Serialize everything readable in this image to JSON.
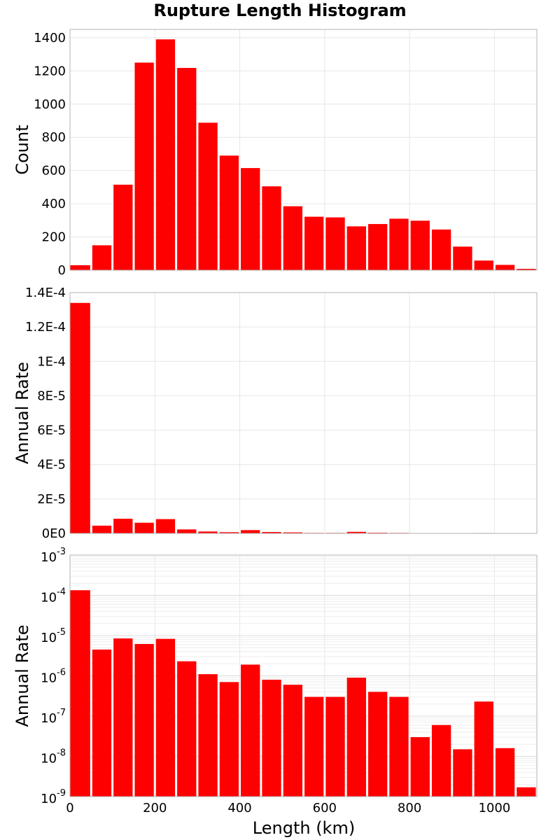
{
  "chart_data": {
    "title": "Rupture Length Histogram",
    "type": "bar",
    "x": {
      "label": "Length (km)",
      "range": [
        0,
        1100
      ],
      "ticks": [
        "0",
        "200",
        "400",
        "600",
        "800",
        "1000"
      ],
      "tick_values": [
        0,
        200,
        400,
        600,
        800,
        1000
      ]
    },
    "bin_width": 50,
    "bin_centers": [
      25,
      75,
      125,
      175,
      225,
      275,
      325,
      375,
      425,
      475,
      525,
      575,
      625,
      675,
      725,
      775,
      825,
      875,
      925,
      975,
      1025,
      1075
    ],
    "bar_color": "#ff0000",
    "grid": true,
    "panels": [
      {
        "ylabel": "Count",
        "scale": "linear",
        "ylim": [
          0,
          1450
        ],
        "ticks": [
          "0",
          "200",
          "400",
          "600",
          "800",
          "1000",
          "1200",
          "1400"
        ],
        "tick_values": [
          0,
          200,
          400,
          600,
          800,
          1000,
          1200,
          1400
        ],
        "values": [
          30,
          150,
          515,
          1250,
          1390,
          1218,
          888,
          690,
          615,
          505,
          385,
          322,
          318,
          264,
          278,
          310,
          298,
          245,
          142,
          58,
          32,
          8
        ]
      },
      {
        "ylabel": "Annual Rate",
        "scale": "linear",
        "ylim": [
          0,
          0.00014
        ],
        "ticks": [
          "0E0",
          "2E-5",
          "4E-5",
          "6E-5",
          "8E-5",
          "1E-4",
          "1.2E-4",
          "1.4E-4"
        ],
        "tick_values": [
          0,
          2e-05,
          4e-05,
          6e-05,
          8e-05,
          0.0001,
          0.00012,
          0.00014
        ],
        "values": [
          0.000134,
          4.5e-06,
          8.5e-06,
          6.2e-06,
          8.3e-06,
          2.3e-06,
          1.1e-06,
          7e-07,
          1.9e-06,
          8e-07,
          6e-07,
          3e-07,
          3e-07,
          9e-07,
          4e-07,
          3e-07,
          3e-08,
          6e-08,
          1.5e-08,
          2.3e-07,
          1.6e-08,
          1.7e-09
        ]
      },
      {
        "ylabel": "Annual Rate",
        "scale": "log",
        "ylim": [
          1e-09,
          0.001
        ],
        "ticks": [
          {
            "base": "10",
            "exp": "-9"
          },
          {
            "base": "10",
            "exp": "-8"
          },
          {
            "base": "10",
            "exp": "-7"
          },
          {
            "base": "10",
            "exp": "-6"
          },
          {
            "base": "10",
            "exp": "-5"
          },
          {
            "base": "10",
            "exp": "-4"
          },
          {
            "base": "10",
            "exp": "-3"
          }
        ],
        "tick_values": [
          1e-09,
          1e-08,
          1e-07,
          1e-06,
          1e-05,
          0.0001,
          0.001
        ],
        "values": [
          0.000134,
          4.5e-06,
          8.5e-06,
          6.2e-06,
          8.3e-06,
          2.3e-06,
          1.1e-06,
          7e-07,
          1.9e-06,
          8e-07,
          6e-07,
          3e-07,
          3e-07,
          9e-07,
          4e-07,
          3e-07,
          3e-08,
          6e-08,
          1.5e-08,
          2.3e-07,
          1.6e-08,
          1.7e-09
        ]
      }
    ]
  }
}
